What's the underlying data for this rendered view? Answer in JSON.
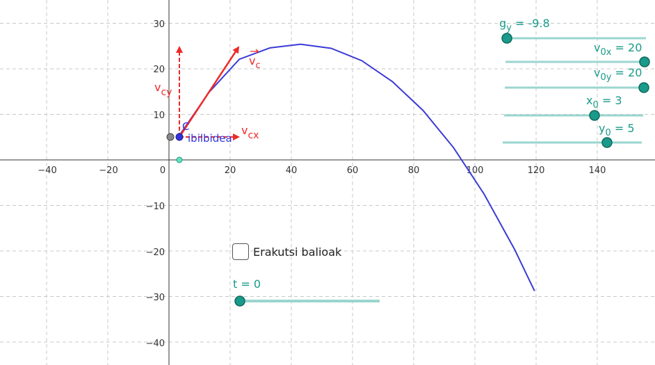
{
  "chart_data": {
    "type": "line",
    "x_ticks": [
      -40,
      -20,
      0,
      20,
      40,
      60,
      80,
      100,
      120,
      140
    ],
    "y_ticks": [
      30,
      20,
      10,
      -10,
      -20,
      -30,
      -40
    ],
    "grid": true,
    "series": [
      {
        "name": "ibilbidea",
        "color": "#3a3ad6",
        "x": [
          3.0,
          13.0,
          23.0,
          33.0,
          43.0,
          53.0,
          63.0,
          73.0,
          83.0,
          93.0,
          103.0,
          113.0,
          119.5
        ],
        "y": [
          5.0,
          14.78,
          22.1,
          24.6,
          25.4,
          24.5,
          21.8,
          17.2,
          10.9,
          2.7,
          -7.5,
          -19.7,
          -28.8
        ]
      }
    ]
  },
  "labels": {
    "x_tick_labels": [
      "−40",
      "−20",
      "0",
      "20",
      "40",
      "60",
      "80",
      "100",
      "120",
      "140"
    ],
    "y_tick_labels": [
      "30",
      "20",
      "10",
      "−10",
      "−20",
      "−30",
      "−40"
    ],
    "point_c": "C",
    "trajectory": "ibilbidea",
    "vc_main": "v",
    "vc_sub": "c",
    "vc_arrow": "→",
    "vcx_main": "v",
    "vcx_sub": "cx",
    "vcy_main": "v",
    "vcy_sub": "cy"
  },
  "sliders": {
    "gy": {
      "main": "g",
      "sub": "y",
      "value_text": " = -9.8",
      "value": -9.8
    },
    "v0x": {
      "main": "v",
      "sub": "0x",
      "value_text": " = 20",
      "value": 20
    },
    "v0y": {
      "main": "v",
      "sub": "0y",
      "value_text": " = 20",
      "value": 20
    },
    "x0": {
      "main": "x",
      "sub": "0",
      "value_text": " = 3",
      "value": 3
    },
    "y0": {
      "main": "y",
      "sub": "0",
      "value_text": " = 5",
      "value": 5
    },
    "t": {
      "label": "t = 0",
      "value": 0
    }
  },
  "checkbox": {
    "label": "Erakutsi balioak",
    "checked": false
  },
  "colors": {
    "curve": "#3a3ad6",
    "vector": "#ee2a2a",
    "slider": "#1a9a8a",
    "slider_track": "#9ad6cf"
  }
}
